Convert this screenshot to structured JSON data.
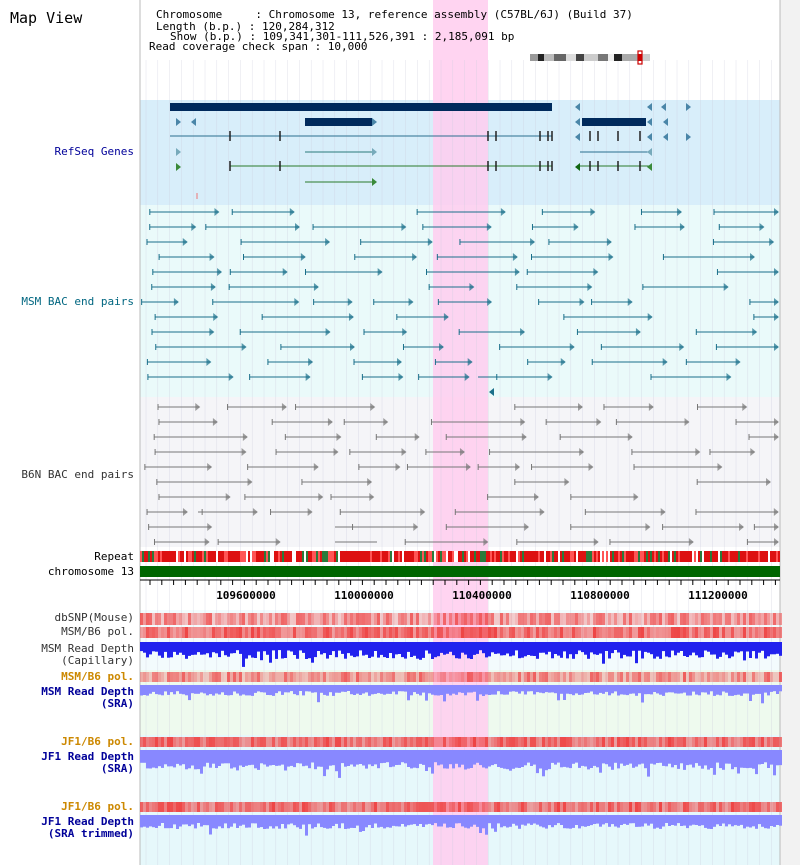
{
  "panel_title": "Map View",
  "info": {
    "chromosome": "Chromosome     : Chromosome 13, reference assembly (C57BL/6J) (Build 37)",
    "length": "Length (b.p.) : 120,284,312",
    "show": "Show (b.p.) : 109,341,301-111,526,391 : 2,185,091 bp",
    "span": "Read coverage check span : 10,000"
  },
  "tracks": {
    "refseq": "RefSeq Genes",
    "msm_bac": "MSM BAC end pairs",
    "b6n_bac": "B6N BAC end pairs",
    "repeat": "Repeat",
    "chrom": "chromosome 13",
    "dbsnp": "dbSNP(Mouse)",
    "msm_pol1": "MSM/B6 pol.",
    "msm_depth_cap_1": "MSM Read Depth",
    "msm_depth_cap_2": "(Capillary)",
    "msm_pol2": "MSM/B6 pol.",
    "msm_depth_sra_1": "MSM Read Depth",
    "msm_depth_sra_2": "(SRA)",
    "jf1_pol1": "JF1/B6 pol.",
    "jf1_depth_sra_1": "JF1 Read Depth",
    "jf1_depth_sra_2": "(SRA)",
    "jf1_pol2": "JF1/B6 pol.",
    "jf1_depth_trim_1": "JF1 Read Depth",
    "jf1_depth_trim_2": "(SRA trimmed)"
  },
  "axis_ticks": [
    "109600000",
    "110000000",
    "110400000",
    "110800000",
    "111200000"
  ],
  "colors": {
    "refseq_label": "#000099",
    "msm_label": "#006680",
    "b6n_label": "#333333",
    "pol_label": "#cc8800",
    "highlight": "#ffccee",
    "gene_dark": "#002a5c",
    "msm_line": "#1a6f8a",
    "b6n_line": "#777777",
    "chrom_bar": "#006600",
    "snp_red": "#ee4444",
    "depth_blue": "#2222ee",
    "depth_light": "#8888ff"
  }
}
